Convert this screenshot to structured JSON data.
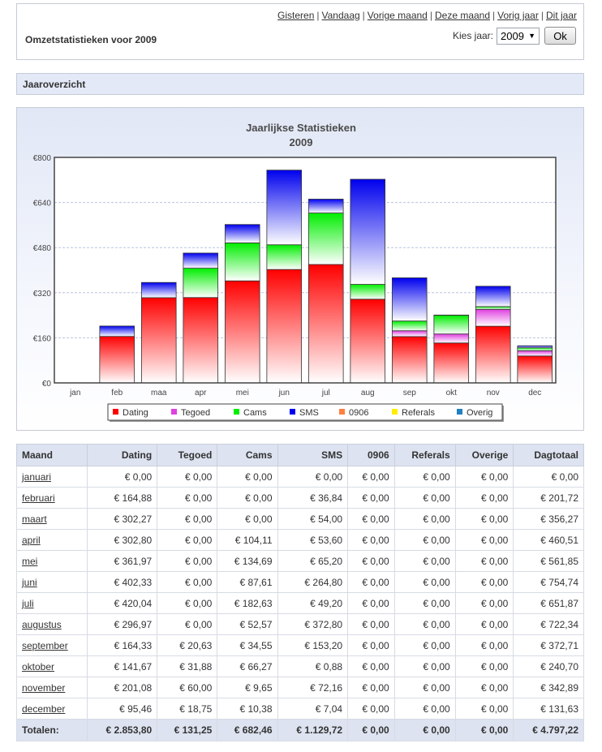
{
  "header": {
    "title": "Omzetstatistieken voor 2009",
    "links": [
      "Gisteren",
      "Vandaag",
      "Vorige maand",
      "Deze maand",
      "Vorig jaar",
      "Dit jaar"
    ],
    "year_label": "Kies jaar:",
    "year_value": "2009",
    "ok_label": "Ok"
  },
  "section_title": "Jaaroverzicht",
  "chart_data": {
    "type": "bar",
    "stacked": true,
    "title": "Jaarlijkse Statistieken",
    "subtitle": "2009",
    "categories": [
      "jan",
      "feb",
      "maa",
      "apr",
      "mei",
      "jun",
      "jul",
      "aug",
      "sep",
      "okt",
      "nov",
      "dec"
    ],
    "yticks": [
      "€0",
      "€160",
      "€320",
      "€480",
      "€640",
      "€800"
    ],
    "ylim": [
      0,
      800
    ],
    "grid": true,
    "legend_position": "bottom",
    "series": [
      {
        "name": "Dating",
        "color": "#ff0000",
        "values": [
          0,
          164.88,
          302.27,
          302.8,
          361.97,
          402.33,
          420.04,
          296.97,
          164.33,
          141.67,
          201.08,
          95.46
        ]
      },
      {
        "name": "Tegoed",
        "color": "#e040e0",
        "values": [
          0,
          0,
          0,
          0,
          0,
          0,
          0,
          0,
          20.63,
          31.88,
          60.0,
          18.75
        ]
      },
      {
        "name": "Cams",
        "color": "#00ee00",
        "values": [
          0,
          0,
          0,
          104.11,
          134.69,
          87.61,
          182.63,
          52.57,
          34.55,
          66.27,
          9.65,
          10.38
        ]
      },
      {
        "name": "SMS",
        "color": "#0000ee",
        "values": [
          0,
          36.84,
          54.0,
          53.6,
          65.2,
          264.8,
          49.2,
          372.8,
          153.2,
          0.88,
          72.16,
          7.04
        ]
      },
      {
        "name": "0906",
        "color": "#ff8040",
        "values": [
          0,
          0,
          0,
          0,
          0,
          0,
          0,
          0,
          0,
          0,
          0,
          0
        ]
      },
      {
        "name": "Referals",
        "color": "#ffee00",
        "values": [
          0,
          0,
          0,
          0,
          0,
          0,
          0,
          0,
          0,
          0,
          0,
          0
        ]
      },
      {
        "name": "Overig",
        "color": "#2080c0",
        "values": [
          0,
          0,
          0,
          0,
          0,
          0,
          0,
          0,
          0,
          0,
          0,
          0
        ]
      }
    ]
  },
  "table": {
    "headers": [
      "Maand",
      "Dating",
      "Tegoed",
      "Cams",
      "SMS",
      "0906",
      "Referals",
      "Overige",
      "Dagtotaal"
    ],
    "rows": [
      [
        "januari",
        "€ 0,00",
        "€ 0,00",
        "€ 0,00",
        "€ 0,00",
        "€ 0,00",
        "€ 0,00",
        "€ 0,00",
        "€ 0,00"
      ],
      [
        "februari",
        "€ 164,88",
        "€ 0,00",
        "€ 0,00",
        "€ 36,84",
        "€ 0,00",
        "€ 0,00",
        "€ 0,00",
        "€ 201,72"
      ],
      [
        "maart",
        "€ 302,27",
        "€ 0,00",
        "€ 0,00",
        "€ 54,00",
        "€ 0,00",
        "€ 0,00",
        "€ 0,00",
        "€ 356,27"
      ],
      [
        "april",
        "€ 302,80",
        "€ 0,00",
        "€ 104,11",
        "€ 53,60",
        "€ 0,00",
        "€ 0,00",
        "€ 0,00",
        "€ 460,51"
      ],
      [
        "mei",
        "€ 361,97",
        "€ 0,00",
        "€ 134,69",
        "€ 65,20",
        "€ 0,00",
        "€ 0,00",
        "€ 0,00",
        "€ 561,85"
      ],
      [
        "juni",
        "€ 402,33",
        "€ 0,00",
        "€ 87,61",
        "€ 264,80",
        "€ 0,00",
        "€ 0,00",
        "€ 0,00",
        "€ 754,74"
      ],
      [
        "juli",
        "€ 420,04",
        "€ 0,00",
        "€ 182,63",
        "€ 49,20",
        "€ 0,00",
        "€ 0,00",
        "€ 0,00",
        "€ 651,87"
      ],
      [
        "augustus",
        "€ 296,97",
        "€ 0,00",
        "€ 52,57",
        "€ 372,80",
        "€ 0,00",
        "€ 0,00",
        "€ 0,00",
        "€ 722,34"
      ],
      [
        "september",
        "€ 164,33",
        "€ 20,63",
        "€ 34,55",
        "€ 153,20",
        "€ 0,00",
        "€ 0,00",
        "€ 0,00",
        "€ 372,71"
      ],
      [
        "oktober",
        "€ 141,67",
        "€ 31,88",
        "€ 66,27",
        "€ 0,88",
        "€ 0,00",
        "€ 0,00",
        "€ 0,00",
        "€ 240,70"
      ],
      [
        "november",
        "€ 201,08",
        "€ 60,00",
        "€ 9,65",
        "€ 72,16",
        "€ 0,00",
        "€ 0,00",
        "€ 0,00",
        "€ 342,89"
      ],
      [
        "december",
        "€ 95,46",
        "€ 18,75",
        "€ 10,38",
        "€ 7,04",
        "€ 0,00",
        "€ 0,00",
        "€ 0,00",
        "€ 131,63"
      ]
    ],
    "totals": [
      "Totalen:",
      "€ 2.853,80",
      "€ 131,25",
      "€ 682,46",
      "€ 1.129,72",
      "€ 0,00",
      "€ 0,00",
      "€ 0,00",
      "€ 4.797,22"
    ]
  }
}
